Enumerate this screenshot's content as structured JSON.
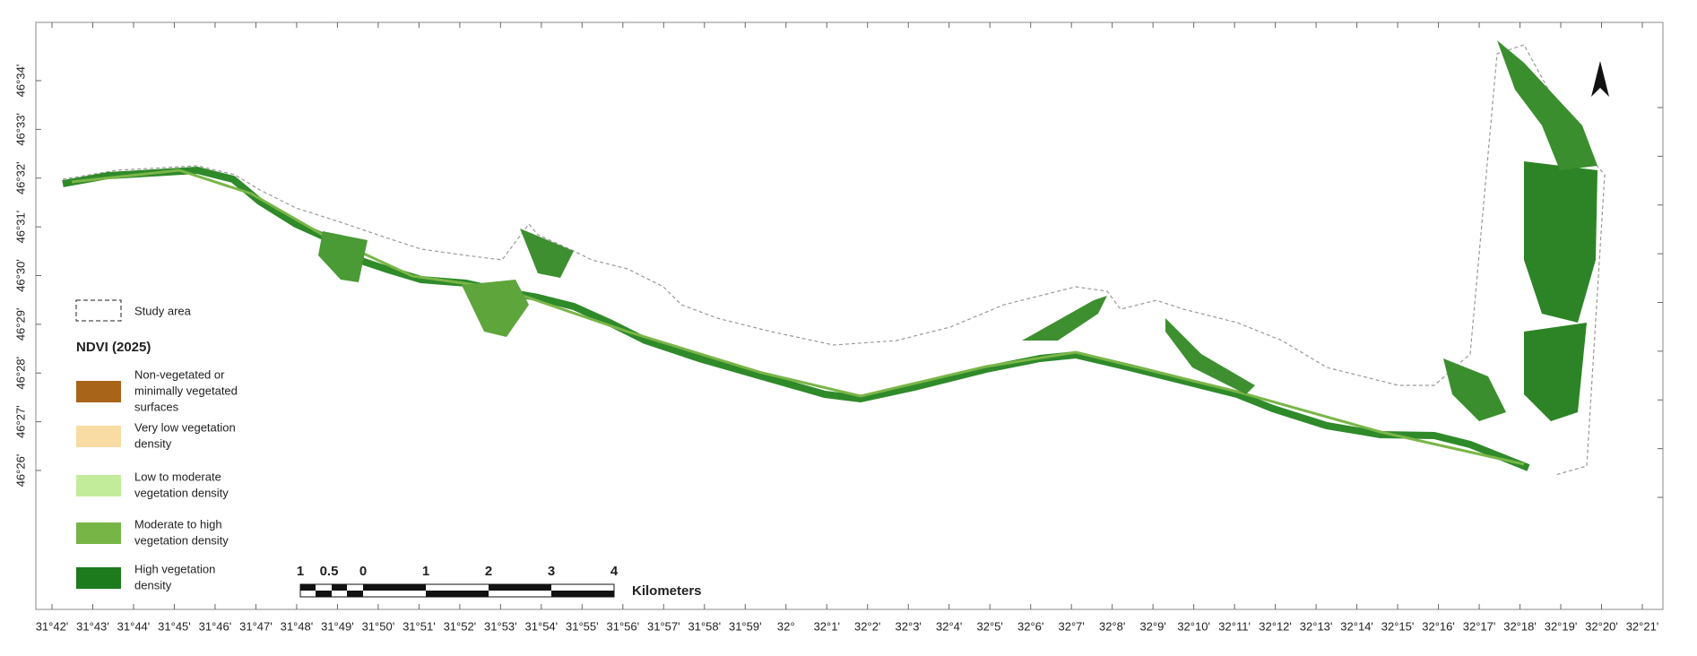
{
  "map": {
    "x_labels": [
      "31°42'",
      "31°43'",
      "31°44'",
      "31°45'",
      "31°46'",
      "31°47'",
      "31°48'",
      "31°49'",
      "31°50'",
      "31°51'",
      "31°52'",
      "31°53'",
      "31°54'",
      "31°55'",
      "31°56'",
      "31°57'",
      "31°58'",
      "31°59'",
      "32°",
      "32°1'",
      "32°2'",
      "32°3'",
      "32°4'",
      "32°5'",
      "32°6'",
      "32°7'",
      "32°8'",
      "32°9'",
      "32°10'",
      "32°11'",
      "32°12'",
      "32°13'",
      "32°14'",
      "32°15'",
      "32°16'",
      "32°17'",
      "32°18'",
      "32°19'",
      "32°20'",
      "32°21'"
    ],
    "y_labels": [
      "46°34'",
      "46°33'",
      "46°32'",
      "46°31'",
      "46°30'",
      "46°29'",
      "46°28'",
      "46°27'",
      "46°26'"
    ]
  },
  "legend": {
    "study_area": "Study area",
    "title": "NDVI (2025)",
    "items": [
      {
        "lines": [
          "Non-vegetated or",
          "minimally vegetated",
          "surfaces"
        ],
        "color": "#a8651a"
      },
      {
        "lines": [
          "Very low vegetation",
          "density"
        ],
        "color": "#f8dca3"
      },
      {
        "lines": [
          "Low to moderate",
          "vegetation density"
        ],
        "color": "#c3ec9a"
      },
      {
        "lines": [
          "Moderate to high",
          "vegetation density"
        ],
        "color": "#77b546"
      },
      {
        "lines": [
          "High vegetation",
          "density"
        ],
        "color": "#1d7a1d"
      }
    ]
  },
  "scale_bar": {
    "labels": [
      "1",
      "0.5",
      "0",
      "1",
      "2",
      "3",
      "4"
    ],
    "unit": "Kilometers"
  }
}
